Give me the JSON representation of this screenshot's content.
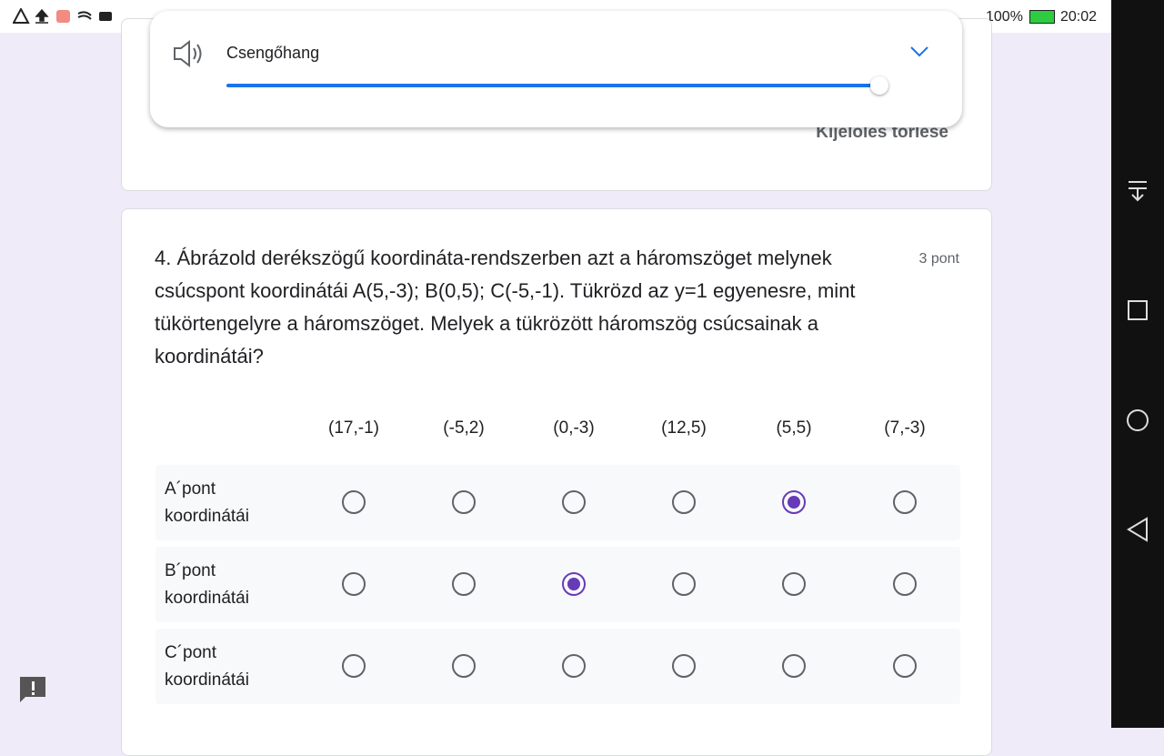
{
  "status_bar": {
    "battery": "100%",
    "time": "20:02"
  },
  "volume_panel": {
    "label": "Csengőhang"
  },
  "previous_card": {
    "clear_selection": "Kijelölés törlése"
  },
  "question": {
    "text": "4. Ábrázold derékszögű koordináta-rendszerben azt a háromszöget melynek csúcspont koordinátái A(5,-3); B(0,5); C(-5,-1). Tükrözd az y=1 egyenesre, mint tükörtengelyre a háromszöget. Melyek a tükrözött háromszög csúcsainak a koordinátái?",
    "points": "3 pont",
    "columns": [
      "(17,-1)",
      "(-5,2)",
      "(0,-3)",
      "(12,5)",
      "(5,5)",
      "(7,-3)"
    ],
    "rows": [
      {
        "label": "A´pont koordinátái",
        "selected": 4
      },
      {
        "label": "B´pont koordinátái",
        "selected": 2
      },
      {
        "label": "C´pont koordinátái",
        "selected": null
      }
    ]
  }
}
